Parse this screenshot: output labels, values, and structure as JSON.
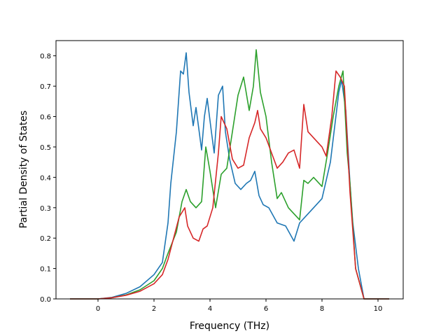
{
  "chart_data": {
    "type": "line",
    "title": "",
    "xlabel": "Frequency (THz)",
    "ylabel": "Partial Density of States",
    "xlim": [
      -1.5,
      10.9
    ],
    "ylim": [
      0.0,
      0.85
    ],
    "xticks": [
      0,
      2,
      4,
      6,
      8,
      10
    ],
    "yticks": [
      0.0,
      0.1,
      0.2,
      0.3,
      0.4,
      0.5,
      0.6,
      0.7,
      0.8
    ],
    "xtick_labels": [
      "0",
      "2",
      "4",
      "6",
      "8",
      "10"
    ],
    "ytick_labels": [
      "0.0",
      "0.1",
      "0.2",
      "0.3",
      "0.4",
      "0.5",
      "0.6",
      "0.7",
      "0.8"
    ],
    "grid": false,
    "legend": "none",
    "series": [
      {
        "color": "#1f77b4",
        "x": [
          -1.0,
          0.0,
          0.5,
          1.0,
          1.5,
          2.0,
          2.3,
          2.5,
          2.6,
          2.8,
          2.95,
          3.05,
          3.15,
          3.25,
          3.4,
          3.5,
          3.7,
          3.8,
          3.9,
          4.05,
          4.15,
          4.3,
          4.45,
          4.55,
          4.7,
          4.9,
          5.1,
          5.3,
          5.45,
          5.6,
          5.75,
          5.9,
          6.1,
          6.4,
          6.7,
          7.0,
          7.2,
          7.4,
          7.7,
          8.0,
          8.3,
          8.6,
          8.7,
          8.85,
          9.0,
          9.1,
          9.3,
          9.5,
          10.4
        ],
        "y": [
          0.0,
          0.0,
          0.005,
          0.018,
          0.04,
          0.08,
          0.12,
          0.25,
          0.38,
          0.55,
          0.75,
          0.74,
          0.81,
          0.68,
          0.57,
          0.63,
          0.49,
          0.6,
          0.66,
          0.55,
          0.48,
          0.67,
          0.7,
          0.55,
          0.46,
          0.38,
          0.36,
          0.38,
          0.39,
          0.42,
          0.34,
          0.31,
          0.3,
          0.25,
          0.24,
          0.19,
          0.25,
          0.27,
          0.3,
          0.33,
          0.45,
          0.68,
          0.72,
          0.62,
          0.38,
          0.25,
          0.1,
          0.0,
          0.0
        ]
      },
      {
        "color": "#2ca02c",
        "x": [
          -1.0,
          0.0,
          0.5,
          1.0,
          1.5,
          2.0,
          2.3,
          2.5,
          2.8,
          3.0,
          3.15,
          3.3,
          3.5,
          3.7,
          3.85,
          4.0,
          4.2,
          4.4,
          4.6,
          4.8,
          5.0,
          5.2,
          5.4,
          5.55,
          5.65,
          5.8,
          6.0,
          6.2,
          6.4,
          6.55,
          6.8,
          7.0,
          7.2,
          7.35,
          7.5,
          7.7,
          8.0,
          8.2,
          8.4,
          8.6,
          8.75,
          8.9,
          9.0,
          9.2,
          9.5,
          10.4
        ],
        "y": [
          0.0,
          0.0,
          0.004,
          0.013,
          0.03,
          0.06,
          0.1,
          0.15,
          0.22,
          0.32,
          0.36,
          0.32,
          0.3,
          0.32,
          0.5,
          0.42,
          0.3,
          0.41,
          0.43,
          0.55,
          0.67,
          0.73,
          0.62,
          0.7,
          0.82,
          0.68,
          0.6,
          0.45,
          0.33,
          0.35,
          0.3,
          0.28,
          0.26,
          0.39,
          0.38,
          0.4,
          0.37,
          0.48,
          0.6,
          0.7,
          0.75,
          0.48,
          0.38,
          0.1,
          0.0,
          0.0
        ]
      },
      {
        "color": "#d62728",
        "x": [
          -1.0,
          0.0,
          0.5,
          1.0,
          1.5,
          2.0,
          2.3,
          2.5,
          2.7,
          2.9,
          3.1,
          3.2,
          3.4,
          3.6,
          3.75,
          3.9,
          4.1,
          4.3,
          4.4,
          4.6,
          4.8,
          5.0,
          5.2,
          5.4,
          5.6,
          5.7,
          5.8,
          6.0,
          6.2,
          6.4,
          6.6,
          6.8,
          7.0,
          7.2,
          7.35,
          7.5,
          7.7,
          8.0,
          8.15,
          8.35,
          8.5,
          8.65,
          8.8,
          9.0,
          9.2,
          9.5,
          10.4
        ],
        "y": [
          0.0,
          0.0,
          0.004,
          0.012,
          0.025,
          0.05,
          0.08,
          0.13,
          0.2,
          0.27,
          0.3,
          0.24,
          0.2,
          0.19,
          0.23,
          0.24,
          0.3,
          0.48,
          0.6,
          0.56,
          0.46,
          0.43,
          0.44,
          0.53,
          0.58,
          0.62,
          0.56,
          0.53,
          0.48,
          0.43,
          0.45,
          0.48,
          0.49,
          0.43,
          0.64,
          0.55,
          0.53,
          0.5,
          0.47,
          0.6,
          0.75,
          0.73,
          0.7,
          0.35,
          0.1,
          0.0,
          0.0
        ]
      }
    ]
  }
}
